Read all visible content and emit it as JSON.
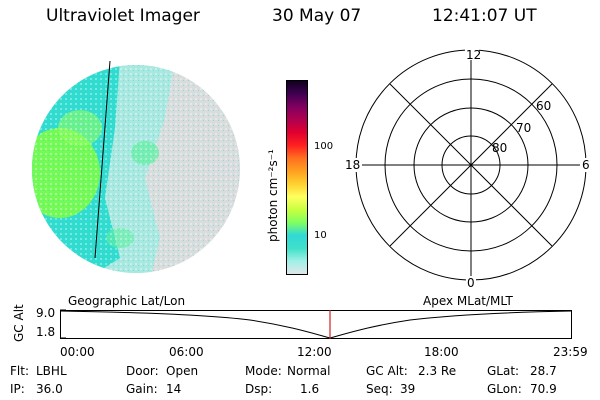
{
  "header": {
    "instrument": "Ultraviolet Imager",
    "date": "30 May 07",
    "time": "12:41:07 UT"
  },
  "colorbar": {
    "unit": "photon cm⁻²s⁻¹",
    "ticks": [
      "100",
      "10"
    ],
    "colors": [
      "#dfe7e7",
      "#a0f0e8",
      "#40e0c8",
      "#30d8d8",
      "#80ff60",
      "#c8ff40",
      "#ffff60",
      "#ffd030",
      "#ffa020",
      "#ff7020",
      "#ff2020",
      "#e00030",
      "#b00050",
      "#800060",
      "#400050",
      "#100020"
    ]
  },
  "image_panel": {
    "colors": {
      "glow_green": "#80ff40",
      "cyan": "#30dcd0",
      "aqua": "#a8e8e0",
      "grey": "#d8dcdc",
      "line": "#000000"
    }
  },
  "polar_grid": {
    "mlt_labels": {
      "top": "12",
      "left": "18",
      "right": "6",
      "bottom": "0"
    },
    "lat_labels": [
      "60",
      "70",
      "80"
    ]
  },
  "timeline": {
    "left_label": "Geographic Lat/Lon",
    "right_label": "Apex MLat/MLT",
    "axis_title": "GC Alt",
    "y_ticks": [
      "9.0",
      "1.8"
    ],
    "time_ticks": [
      "00:00",
      "06:00",
      "12:00",
      "18:00",
      "23:59"
    ],
    "marker_color": "#d02020"
  },
  "info": {
    "filter": {
      "label": "Flt:",
      "value": "LBHL"
    },
    "ip": {
      "label": "IP:",
      "value": "36.0"
    },
    "door": {
      "label": "Door:",
      "value": "Open"
    },
    "gain": {
      "label": "Gain:",
      "value": "14"
    },
    "mode": {
      "label": "Mode:",
      "value": "Normal"
    },
    "dsp": {
      "label": "Dsp:",
      "value": "1.6"
    },
    "gc_alt": {
      "label": "GC Alt:",
      "value": "2.3 Re"
    },
    "seq": {
      "label": "Seq:",
      "value": "39"
    },
    "glat": {
      "label": "GLat:",
      "value": "28.7"
    },
    "glon": {
      "label": "GLon:",
      "value": "70.9"
    }
  }
}
